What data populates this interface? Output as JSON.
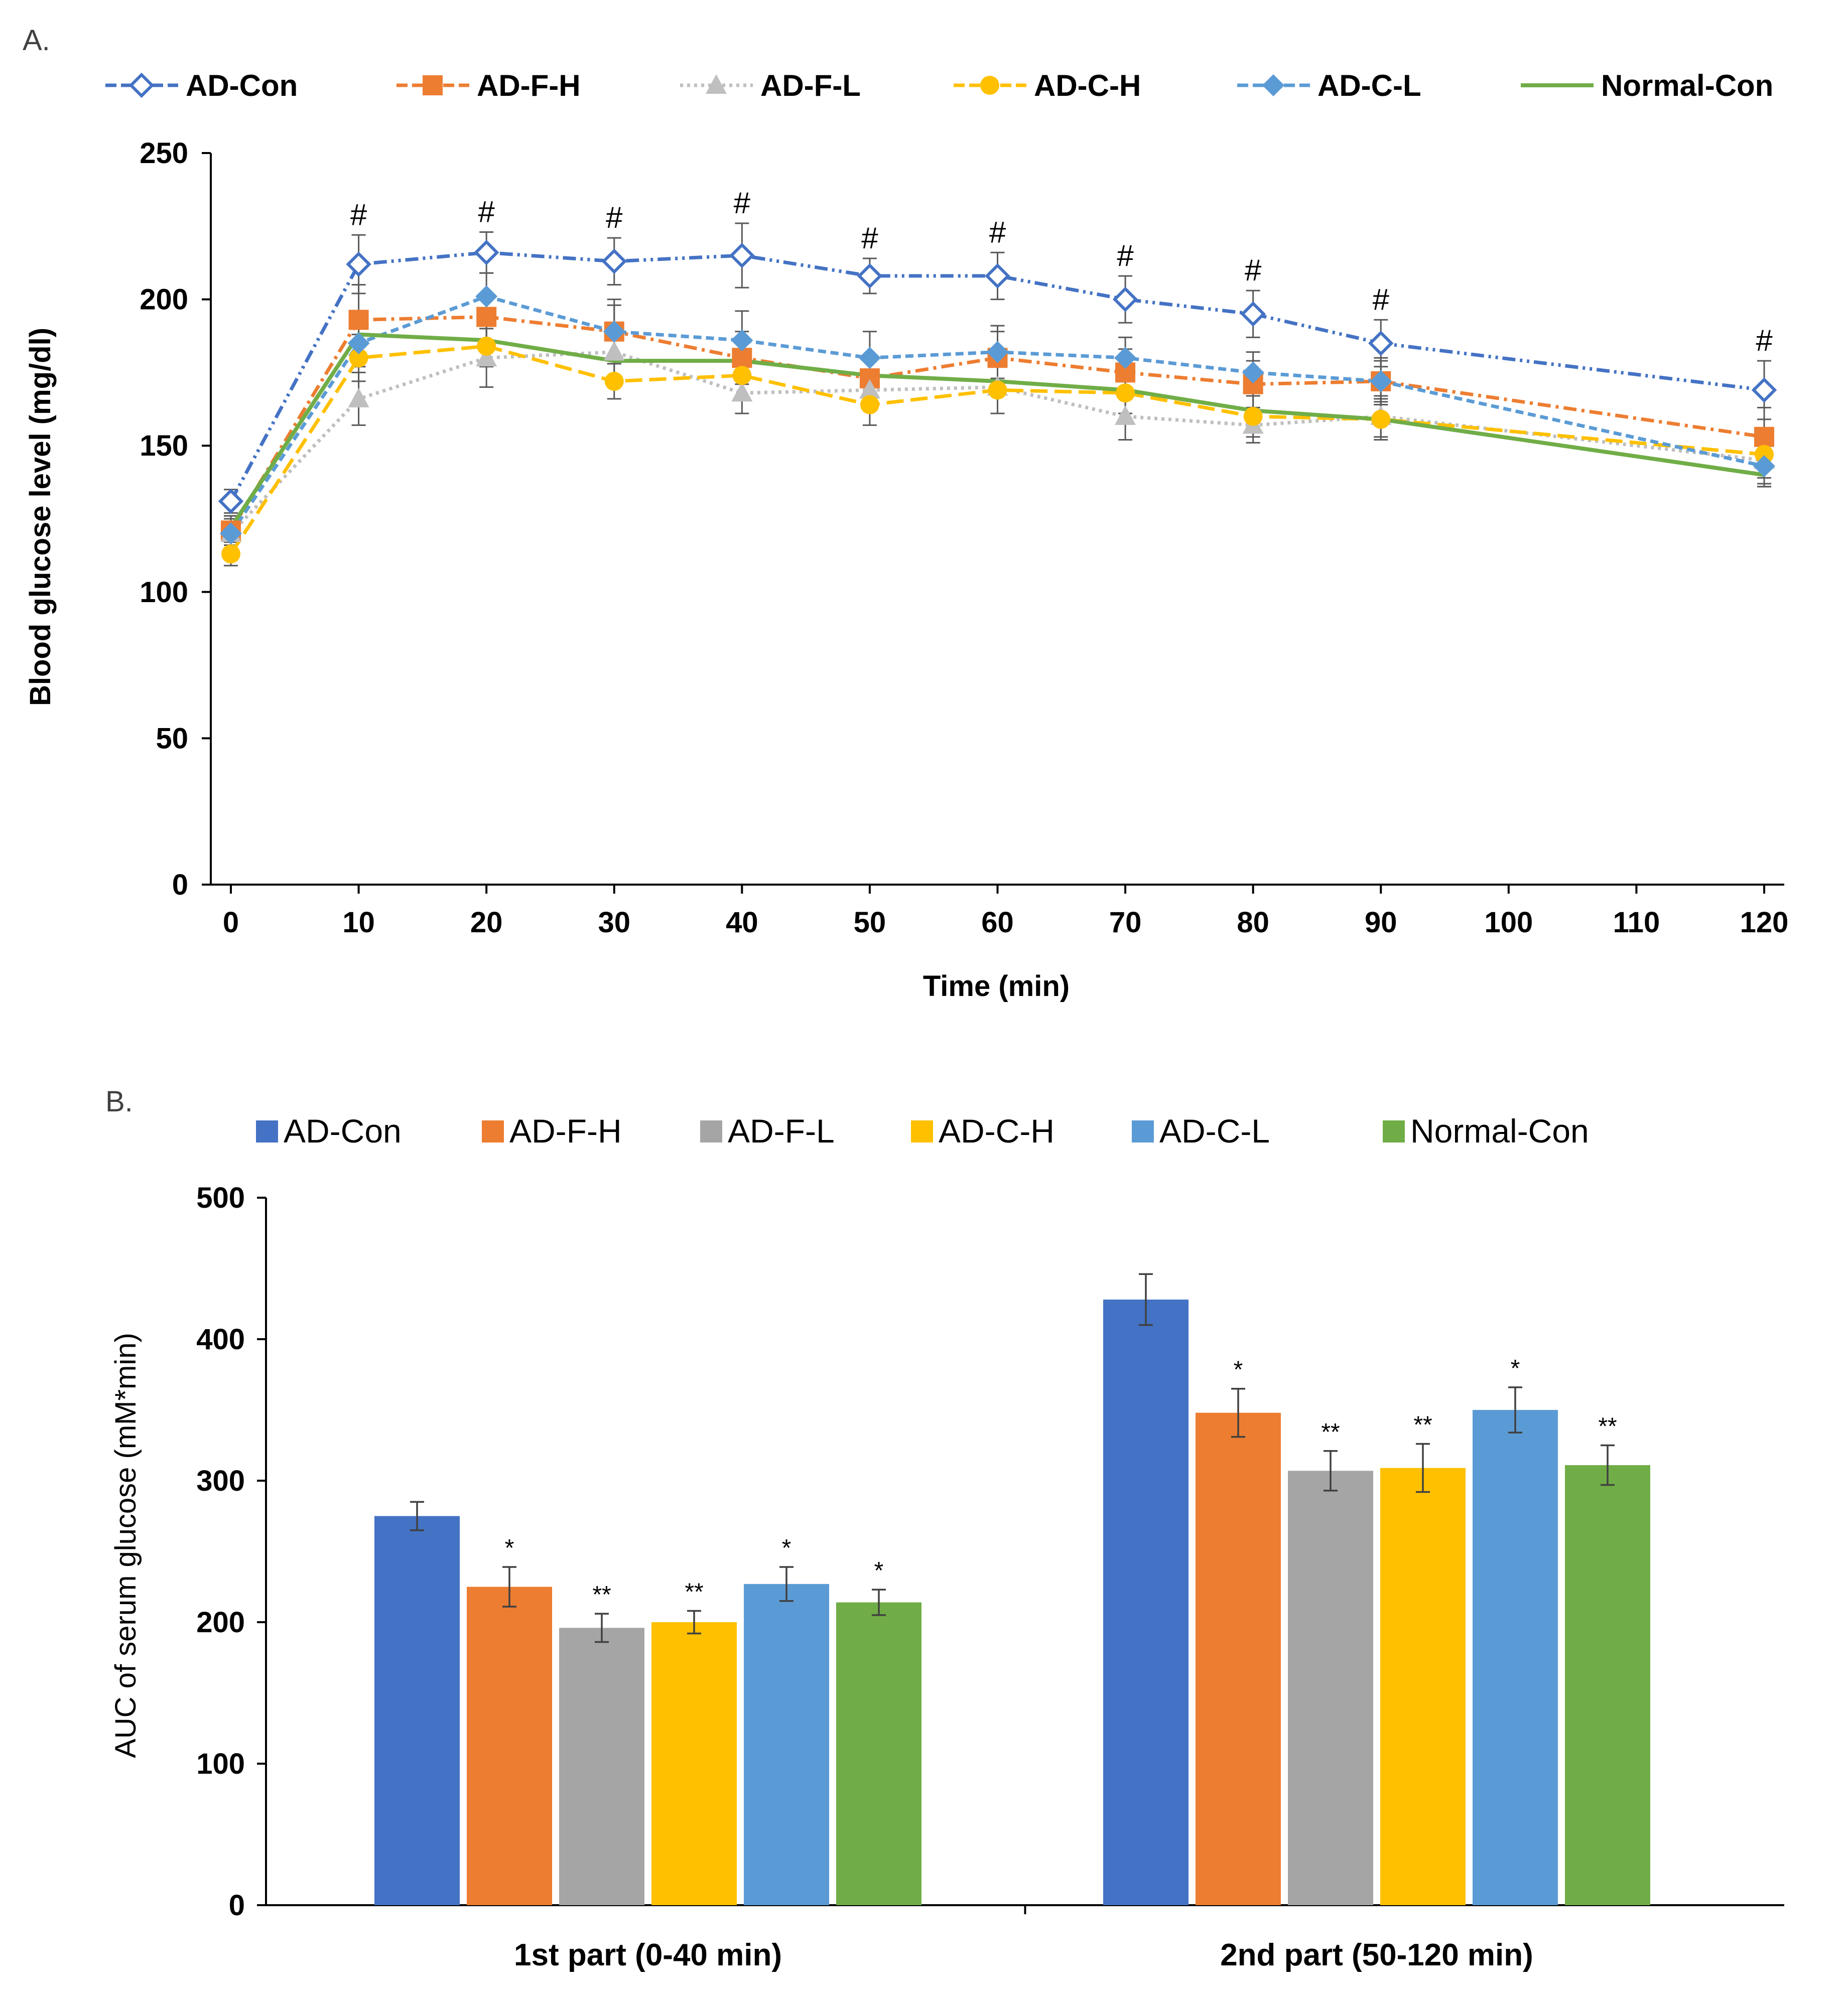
{
  "chart_data": [
    {
      "panel_label": "A.",
      "type": "line",
      "xlabel": "Time (min)",
      "ylabel": "Blood glucose level (mg/dl)",
      "ylim": [
        0,
        250
      ],
      "yticks": [
        0,
        50,
        100,
        150,
        200,
        250
      ],
      "xlim": [
        0,
        120
      ],
      "xticks": [
        0,
        10,
        20,
        30,
        40,
        50,
        60,
        70,
        80,
        90,
        100,
        110,
        120
      ],
      "legend_position": "top",
      "annotation_symbol": "#",
      "annotation_x": [
        10,
        20,
        30,
        40,
        50,
        60,
        70,
        80,
        90,
        120
      ],
      "series": [
        {
          "name": "AD-Con",
          "color": "#4472C4",
          "marker": "diamond-open",
          "dash": "dash-dot-dot",
          "x": [
            0,
            10,
            20,
            30,
            40,
            50,
            60,
            70,
            80,
            90,
            120
          ],
          "values": [
            131,
            212,
            216,
            213,
            215,
            208,
            208,
            200,
            195,
            185,
            169
          ],
          "errors": [
            4,
            10,
            7,
            8,
            11,
            6,
            8,
            8,
            8,
            8,
            10
          ]
        },
        {
          "name": "AD-F-H",
          "color": "#ED7D31",
          "marker": "square",
          "dash": "dash-dot",
          "x": [
            0,
            10,
            20,
            30,
            40,
            50,
            60,
            70,
            80,
            90,
            120
          ],
          "values": [
            121,
            193,
            194,
            189,
            180,
            173,
            180,
            175,
            171,
            172,
            153
          ],
          "errors": [
            5,
            12,
            8,
            11,
            9,
            8,
            9,
            8,
            8,
            8,
            10
          ]
        },
        {
          "name": "AD-F-L",
          "color": "#BFBFBF",
          "marker": "triangle",
          "dash": "dot",
          "x": [
            0,
            10,
            20,
            30,
            40,
            50,
            60,
            70,
            80,
            90,
            120
          ],
          "values": [
            120,
            166,
            180,
            182,
            168,
            169,
            170,
            160,
            157,
            160,
            145
          ],
          "errors": [
            5,
            9,
            10,
            9,
            7,
            7,
            9,
            8,
            6,
            7,
            8
          ]
        },
        {
          "name": "AD-C-H",
          "color": "#FFC000",
          "marker": "circle",
          "dash": "long-dash",
          "x": [
            0,
            10,
            20,
            30,
            40,
            50,
            60,
            70,
            80,
            90,
            120
          ],
          "values": [
            113,
            180,
            184,
            172,
            174,
            164,
            169,
            168,
            160,
            159,
            147
          ],
          "errors": [
            4,
            8,
            7,
            6,
            7,
            7,
            8,
            7,
            7,
            7,
            8
          ]
        },
        {
          "name": "AD-C-L",
          "color": "#5B9BD5",
          "marker": "diamond",
          "dash": "dash",
          "x": [
            0,
            10,
            20,
            30,
            40,
            50,
            60,
            70,
            80,
            90,
            120
          ],
          "values": [
            120,
            185,
            201,
            189,
            186,
            180,
            182,
            180,
            175,
            172,
            143
          ],
          "errors": [
            4,
            8,
            8,
            9,
            10,
            9,
            9,
            7,
            7,
            7,
            7
          ]
        },
        {
          "name": "Normal-Con",
          "color": "#70AD47",
          "marker": "none",
          "dash": "solid",
          "x": [
            0,
            10,
            20,
            120
          ],
          "values": [
            122,
            188,
            186,
            140
          ],
          "errors": [
            4,
            8,
            8,
            4
          ],
          "points": [
            [
              0,
              122
            ],
            [
              10,
              188
            ],
            [
              20,
              186
            ],
            [
              30,
              179
            ],
            [
              40,
              179
            ],
            [
              50,
              174
            ],
            [
              60,
              172
            ],
            [
              70,
              169
            ],
            [
              80,
              162
            ],
            [
              90,
              159
            ],
            [
              120,
              140
            ]
          ]
        }
      ]
    },
    {
      "panel_label": "B.",
      "type": "bar",
      "ylabel": "AUC of serum glucose (mM*min)",
      "xlabel": "",
      "ylim": [
        0,
        500
      ],
      "yticks": [
        0,
        100,
        200,
        300,
        400,
        500
      ],
      "categories": [
        "1st part (0-40 min)",
        "2nd part (50-120 min)"
      ],
      "legend_position": "top",
      "series": [
        {
          "name": "AD-Con",
          "color": "#4472C4",
          "values": [
            275,
            428
          ],
          "errors": [
            10,
            18
          ],
          "significance": [
            "",
            ""
          ]
        },
        {
          "name": "AD-F-H",
          "color": "#ED7D31",
          "values": [
            225,
            348
          ],
          "errors": [
            14,
            17
          ],
          "significance": [
            "*",
            "*"
          ]
        },
        {
          "name": "AD-F-L",
          "color": "#A5A5A5",
          "values": [
            196,
            307
          ],
          "errors": [
            10,
            14
          ],
          "significance": [
            "**",
            "**"
          ]
        },
        {
          "name": "AD-C-H",
          "color": "#FFC000",
          "values": [
            200,
            309
          ],
          "errors": [
            8,
            17
          ],
          "significance": [
            "**",
            "**"
          ]
        },
        {
          "name": "AD-C-L",
          "color": "#5B9BD5",
          "values": [
            227,
            350
          ],
          "errors": [
            12,
            16
          ],
          "significance": [
            "*",
            "*"
          ]
        },
        {
          "name": "Normal-Con",
          "color": "#70AD47",
          "values": [
            214,
            311
          ],
          "errors": [
            9,
            14
          ],
          "significance": [
            "*",
            "**"
          ]
        }
      ]
    }
  ]
}
